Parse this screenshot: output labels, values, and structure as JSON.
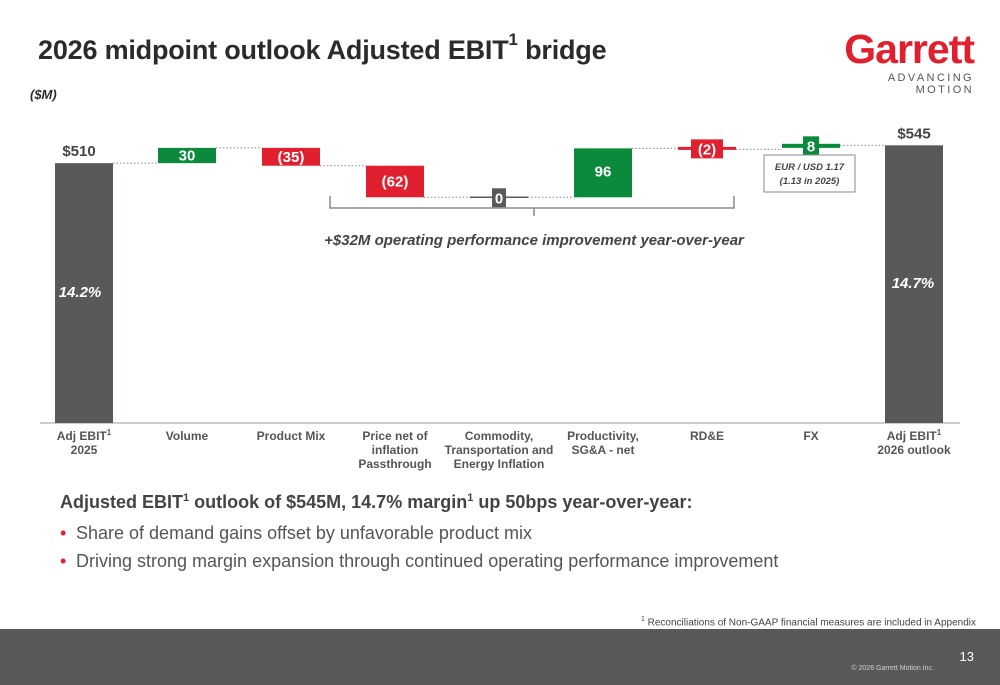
{
  "header": {
    "title": "2026 midpoint outlook Adjusted EBIT",
    "title_sup": "1",
    "title_tail": " bridge",
    "units": "($M)"
  },
  "logo": {
    "wordmark": "Garrett",
    "tagline": "ADVANCING MOTION",
    "color": "#e0202f"
  },
  "chart_data": {
    "type": "waterfall",
    "units": "$M",
    "colors": {
      "total": "#58595b",
      "increase": "#0a8a3a",
      "decrease": "#e0202f",
      "neutral": "#58595b"
    },
    "steps": [
      {
        "label": "Adj EBIT",
        "label_sup": "1",
        "label_line2": "2025",
        "kind": "total",
        "value": 510,
        "value_label": "$510",
        "margin_label": "14.2%"
      },
      {
        "label": "Volume",
        "kind": "delta",
        "value": 30,
        "value_label": "30"
      },
      {
        "label": "Product Mix",
        "kind": "delta",
        "value": -35,
        "value_label": "(35)"
      },
      {
        "label": "Price net of",
        "label_line2": "inflation",
        "label_line3": "Passthrough",
        "kind": "delta",
        "value": -62,
        "value_label": "(62)"
      },
      {
        "label": "Commodity,",
        "label_line2": "Transportation and",
        "label_line3": "Energy Inflation",
        "kind": "delta",
        "value": 0,
        "value_label": "0"
      },
      {
        "label": "Productivity,",
        "label_line2": "SG&A - net",
        "kind": "delta",
        "value": 96,
        "value_label": "96"
      },
      {
        "label": "RD&E",
        "kind": "delta",
        "value": -2,
        "value_label": "(2)"
      },
      {
        "label": "FX",
        "kind": "delta",
        "value": 8,
        "value_label": "8"
      },
      {
        "label": "Adj EBIT",
        "label_sup": "1",
        "label_line2": "2026 outlook",
        "kind": "total",
        "value": 545,
        "value_label": "$545",
        "margin_label": "14.7%"
      }
    ],
    "fx_note": {
      "line1": "EUR / USD 1.17",
      "line2": "(1.13 in 2025)"
    },
    "bracket_note": "+$32M operating performance improvement year-over-year"
  },
  "summary": {
    "headline_parts": [
      "Adjusted EBIT",
      "1",
      " outlook of $545M, 14.7% margin",
      "1",
      " up 50bps year-over-year:"
    ],
    "bullets": [
      "Share of demand gains offset by unfavorable product mix",
      "Driving strong margin expansion through continued operating performance improvement"
    ]
  },
  "footnote": {
    "marker": "1",
    "text": " Reconciliations of Non-GAAP financial measures are included in Appendix"
  },
  "footer": {
    "page_number": "13",
    "copyright": "© 2026 Garrett Motion Inc."
  }
}
